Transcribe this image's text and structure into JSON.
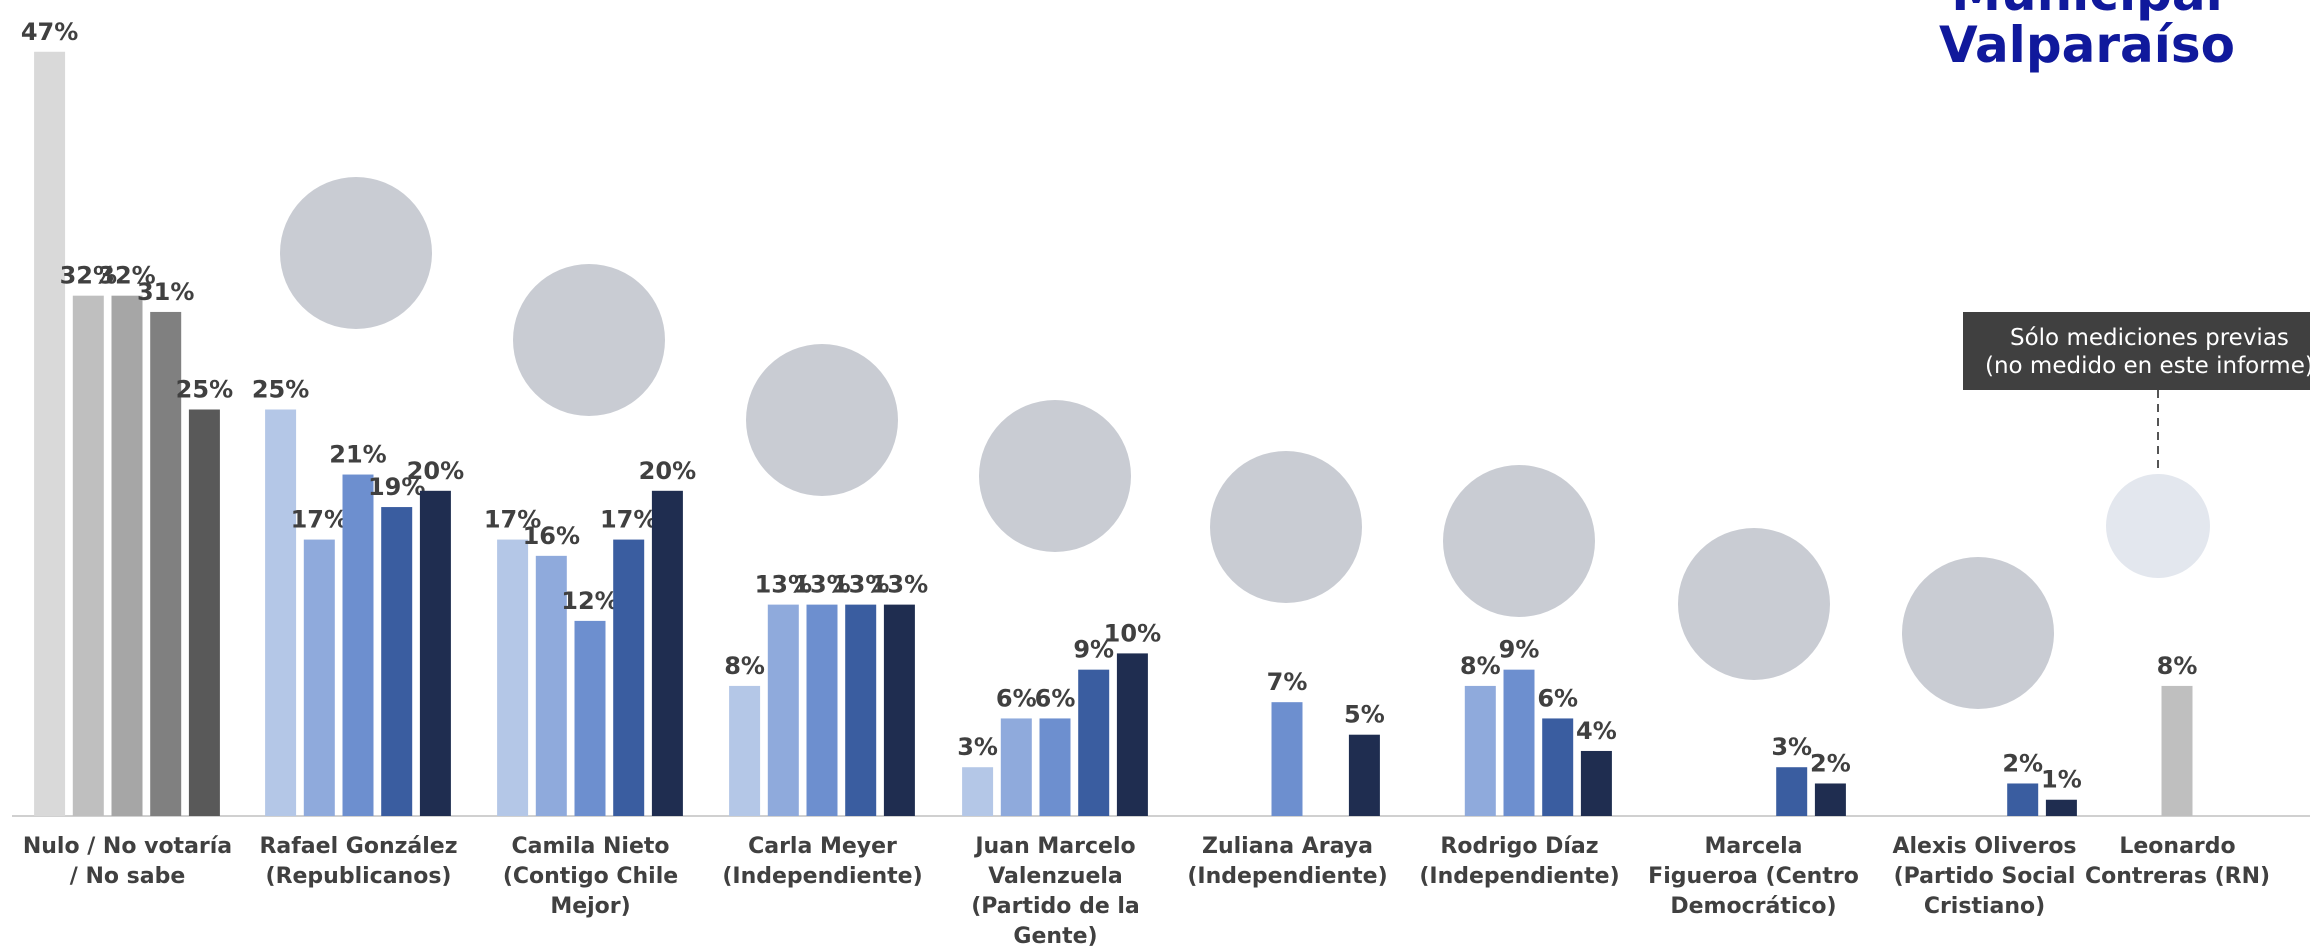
{
  "chart_data": {
    "type": "bar",
    "title": [
      "Municipal",
      "Valparaíso"
    ],
    "annotation": [
      "Sólo mediciones previas",
      "(no medido en este informe)"
    ],
    "categories": [
      "Nulo / No votaría / No sabe",
      "Rafael González (Republicanos)",
      "Camila Nieto (Contigo Chile Mejor)",
      "Carla Meyer (Independiente)",
      "Juan Marcelo Valenzuela (Partido de la Gente)",
      "Zuliana Araya (Independiente)",
      "Rodrigo Díaz (Independiente)",
      "Marcela Figueroa (Centro Democrático)",
      "Alexis Oliveros (Partido Social Cristiano)",
      "Leonardo Contreras (RN)"
    ],
    "ylim": [
      0,
      50
    ],
    "series": [
      {
        "values": [
          47,
          25,
          17,
          8,
          3,
          null,
          null,
          null,
          null,
          null
        ],
        "value_labels": [
          "47%",
          "25%",
          "17%",
          "8%",
          "3%",
          null,
          null,
          null,
          null,
          null
        ],
        "colors": [
          "#d9d9d9",
          "#b4c7e7",
          "#b4c7e7",
          "#b4c7e7",
          "#b4c7e7",
          null,
          null,
          null,
          null,
          null
        ]
      },
      {
        "values": [
          32,
          17,
          16,
          13,
          6,
          null,
          8,
          null,
          null,
          null
        ],
        "value_labels": [
          "32%",
          "17%",
          "16%",
          "13%",
          "6%",
          null,
          "8%",
          null,
          null,
          null
        ],
        "colors": [
          "#bfbfbf",
          "#8faadc",
          "#8faadc",
          "#8faadc",
          "#8faadc",
          null,
          "#8faadc",
          null,
          null,
          null
        ]
      },
      {
        "values": [
          32,
          21,
          12,
          13,
          6,
          7,
          9,
          null,
          null,
          8
        ],
        "value_labels": [
          "32%",
          "21%",
          "12%",
          "13%",
          "6%",
          "7%",
          "9%",
          null,
          null,
          "8%"
        ],
        "colors": [
          "#a6a6a6",
          "#6d8fcf",
          "#6d8fcf",
          "#6d8fcf",
          "#6d8fcf",
          "#6d8fcf",
          "#6d8fcf",
          null,
          null,
          "#bfbfbf"
        ]
      },
      {
        "values": [
          31,
          19,
          17,
          13,
          9,
          null,
          6,
          3,
          2,
          null
        ],
        "value_labels": [
          "31%",
          "19%",
          "17%",
          "13%",
          "9%",
          null,
          "6%",
          "3%",
          "2%",
          null
        ],
        "colors": [
          "#808080",
          "#3a5da0",
          "#3a5da0",
          "#3a5da0",
          "#3a5da0",
          null,
          "#3a5da0",
          "#3a5da0",
          "#3a5da0",
          null
        ]
      },
      {
        "values": [
          25,
          20,
          20,
          13,
          10,
          5,
          4,
          2,
          1,
          null
        ],
        "value_labels": [
          "25%",
          "20%",
          "20%",
          "13%",
          "10%",
          "5%",
          "4%",
          "2%",
          "1%",
          null
        ],
        "colors": [
          "#595959",
          "#1f2d50",
          "#1f2d50",
          "#1f2d50",
          "#1f2d50",
          "#1f2d50",
          "#1f2d50",
          "#1f2d50",
          "#1f2d50",
          null
        ]
      }
    ]
  }
}
